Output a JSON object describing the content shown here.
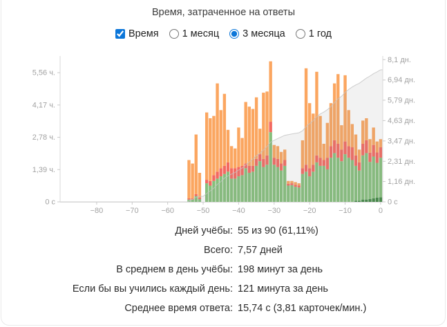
{
  "header": {
    "title": "Время, затраченное на ответы"
  },
  "controls": {
    "time_checkbox": {
      "label": "Время",
      "checked": true
    },
    "range_options": [
      {
        "label": "1 месяц",
        "selected": false
      },
      {
        "label": "3 месяца",
        "selected": true
      },
      {
        "label": "1 год",
        "selected": false
      }
    ],
    "accent_color": "#0b76d9"
  },
  "chart_data": {
    "type": "bar",
    "stacked": true,
    "title": "Время, затраченное на ответы",
    "legend_position": "none",
    "grid": false,
    "days": [
      -54,
      -53,
      -52,
      -51,
      -50,
      -49,
      -48,
      -47,
      -46,
      -45,
      -44,
      -43,
      -42,
      -41,
      -40,
      -39,
      -38,
      -37,
      -36,
      -35,
      -34,
      -33,
      -32,
      -31,
      -30,
      -29,
      -28,
      -27,
      -26,
      -25,
      -24,
      -23,
      -22,
      -21,
      -20,
      -19,
      -18,
      -17,
      -16,
      -15,
      -14,
      -13,
      -12,
      -11,
      -10,
      -9,
      -8,
      -7,
      -6,
      -5,
      -4,
      -3,
      -2,
      -1,
      0
    ],
    "series": [
      {
        "name": "mature-hours",
        "color": "#2e7d32",
        "values": [
          0,
          0,
          0,
          0,
          0,
          0,
          0,
          0,
          0,
          0,
          0,
          0,
          0,
          0,
          0,
          0,
          0,
          0,
          0,
          0,
          0,
          0,
          0,
          0,
          0,
          0,
          0,
          0,
          0,
          0,
          0,
          0,
          0,
          0,
          0,
          0,
          0,
          0,
          0,
          0,
          0,
          0,
          0,
          0,
          0,
          0,
          0,
          0.05,
          0.05,
          0.1,
          0.1,
          0.12,
          0.15,
          0.18,
          0.2
        ]
      },
      {
        "name": "young-hours",
        "color": "#7bba70",
        "values": [
          0.1,
          0.1,
          0.25,
          0.12,
          0,
          0.8,
          0.7,
          0.9,
          1.0,
          1.1,
          1.2,
          1.3,
          1.0,
          1.0,
          1.1,
          1.15,
          1.45,
          1.25,
          1.3,
          1.55,
          1.75,
          1.5,
          1.6,
          3.0,
          1.6,
          1.5,
          1.35,
          1.55,
          0.7,
          0.72,
          0.65,
          0.62,
          1.2,
          1.3,
          1.1,
          1.3,
          1.7,
          1.55,
          1.55,
          1.4,
          1.9,
          2.1,
          1.9,
          1.75,
          2.05,
          1.9,
          1.8,
          1.5,
          1.3,
          1.9,
          2.0,
          1.6,
          1.8,
          1.5,
          1.7
        ]
      },
      {
        "name": "relearn-hours",
        "color": "#f25c52",
        "values": [
          0.05,
          0.05,
          0.08,
          0.06,
          0,
          0.15,
          0.2,
          0.25,
          0.3,
          0.35,
          0.35,
          0.4,
          0.45,
          0.45,
          0.4,
          0.4,
          0.2,
          0.3,
          0.25,
          0.3,
          0.3,
          0.35,
          0.4,
          0.45,
          0.3,
          0.35,
          0.3,
          0.25,
          0.08,
          0.08,
          0.08,
          0.08,
          0.25,
          0.3,
          0.35,
          0.3,
          0.3,
          0.35,
          0.25,
          0.5,
          0.5,
          0.55,
          0.6,
          0.5,
          0.55,
          0.5,
          0.55,
          0.45,
          0.35,
          0.5,
          0.55,
          0.4,
          0.5,
          0.45,
          0.45
        ]
      },
      {
        "name": "learn-hours",
        "color": "#fb9e53",
        "values": [
          1.65,
          1.5,
          2.57,
          1.07,
          0,
          2.9,
          2.7,
          2.55,
          3.8,
          2.5,
          3.1,
          1.4,
          0.95,
          0.85,
          1.7,
          1.2,
          2.65,
          2.55,
          2.45,
          2.65,
          1.1,
          2.85,
          2.75,
          2.6,
          0.55,
          0.55,
          0.5,
          0.45,
          0.12,
          0.1,
          0.12,
          0.1,
          1.2,
          4.15,
          2.8,
          2.2,
          3.6,
          1.8,
          0.7,
          1.5,
          1.85,
          2.45,
          3.0,
          1.05,
          2.85,
          1.55,
          1.0,
          0.9,
          0.55,
          1.0,
          0.95,
          0.58,
          0.75,
          0.47,
          0.35
        ]
      }
    ],
    "cumulative": {
      "unit": "days",
      "total": 7.57,
      "area_color": "#9e9e9e",
      "line_color": "#c2c2c2"
    },
    "axes": {
      "x": {
        "range": [
          -90.3,
          0.6
        ],
        "ticks": [
          -80,
          -70,
          -60,
          -50,
          -40,
          -30,
          -20,
          -10,
          0
        ],
        "tick_labels": [
          "−80",
          "−70",
          "−60",
          "−50",
          "−40",
          "−30",
          "−20",
          "−10",
          "0"
        ]
      },
      "left": {
        "unit": "hours",
        "max": 6.16,
        "ticks": [
          0,
          1.39,
          2.78,
          4.17,
          5.56
        ],
        "tick_labels": [
          "0 с",
          "1,39 ч.",
          "2,78 ч.",
          "4,17 ч.",
          "5,56 ч."
        ]
      },
      "right": {
        "unit": "days",
        "max": 8.15,
        "ticks": [
          0,
          1.16,
          2.31,
          3.47,
          4.63,
          5.79,
          6.94,
          8.1
        ],
        "tick_labels": [
          "0 с",
          "1,16 дн.",
          "2,31 дн.",
          "3,47 дн.",
          "4,63 дн.",
          "5,79 дн.",
          "6,94 дн.",
          "8,1 дн."
        ]
      }
    }
  },
  "summary": {
    "rows": [
      {
        "label": "Дней учёбы:",
        "value": "55 из 90 (61,11%)"
      },
      {
        "label": "Всего:",
        "value": "7,57 дней"
      },
      {
        "label": "В среднем в день учёбы:",
        "value": "198 минут за день"
      },
      {
        "label": "Если бы вы учились каждый день:",
        "value": "121 минута за день"
      },
      {
        "label": "Среднее время ответа:",
        "value": "15,74 с (3,81 карточек/мин.)"
      }
    ]
  }
}
